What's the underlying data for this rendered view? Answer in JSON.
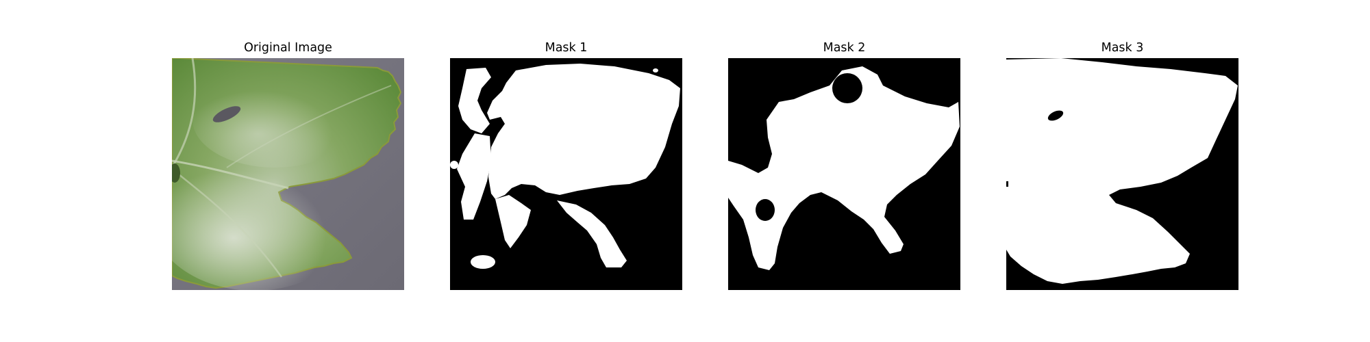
{
  "figure": {
    "panels": [
      {
        "title": "Original Image"
      },
      {
        "title": "Mask 1"
      },
      {
        "title": "Mask 2"
      },
      {
        "title": "Mask 3"
      }
    ]
  },
  "colors": {
    "background": "#7a7882",
    "leaf_green": "#6f9a4a",
    "leaf_dark": "#4f7a35",
    "powdery_white": "#dfe4d8",
    "mask_foreground": "#ffffff",
    "mask_background": "#000000"
  }
}
